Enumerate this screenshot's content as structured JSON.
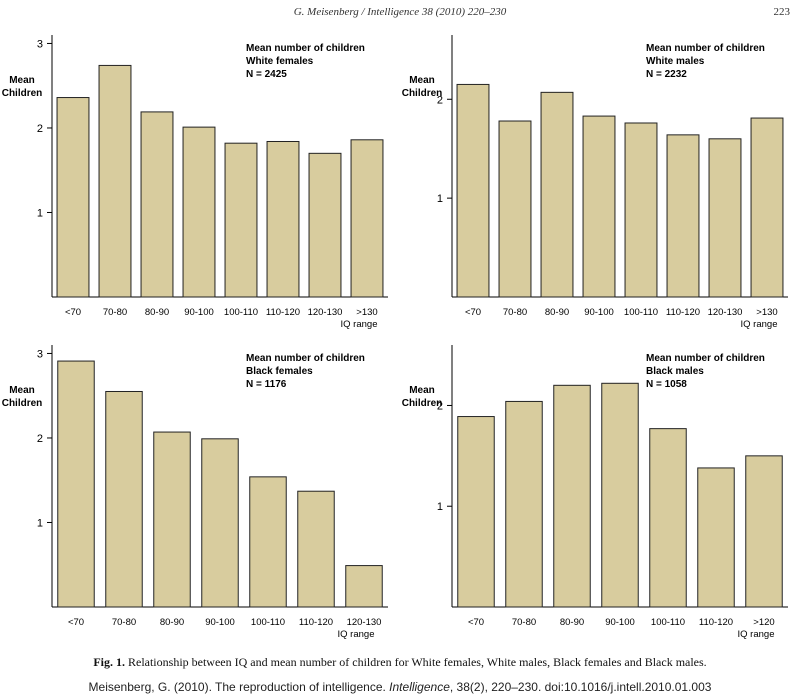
{
  "header": {
    "running_head": "G. Meisenberg / Intelligence 38 (2010) 220–230",
    "page_number": "223"
  },
  "chart_data": [
    {
      "type": "bar",
      "ylabel": "Mean\nChildren",
      "xlabel": "IQ range",
      "annotation": [
        "Mean number of children",
        "White females",
        "N = 2425"
      ],
      "categories": [
        "<70",
        "70-80",
        "80-90",
        "90-100",
        "100-110",
        "110-120",
        "120-130",
        ">130"
      ],
      "values": [
        2.36,
        2.74,
        2.19,
        2.01,
        1.82,
        1.84,
        1.7,
        1.86
      ],
      "ylim": [
        0,
        3.1
      ],
      "yticks": [
        1,
        2,
        3
      ],
      "bar_color": "#d8cc9e"
    },
    {
      "type": "bar",
      "ylabel": "Mean\nChildren",
      "xlabel": "IQ range",
      "annotation": [
        "Mean number of children",
        "White males",
        "N = 2232"
      ],
      "categories": [
        "<70",
        "70-80",
        "80-90",
        "90-100",
        "100-110",
        "110-120",
        "120-130",
        ">130"
      ],
      "values": [
        2.15,
        1.78,
        2.07,
        1.83,
        1.76,
        1.64,
        1.6,
        1.81
      ],
      "ylim": [
        0,
        2.65
      ],
      "yticks": [
        1,
        2
      ],
      "bar_color": "#d8cc9e"
    },
    {
      "type": "bar",
      "ylabel": "Mean\nChildren",
      "xlabel": "IQ range",
      "annotation": [
        "Mean number of children",
        "Black females",
        "N = 1176"
      ],
      "categories": [
        "<70",
        "70-80",
        "80-90",
        "90-100",
        "100-110",
        "110-120",
        "120-130"
      ],
      "values": [
        2.91,
        2.55,
        2.07,
        1.99,
        1.54,
        1.37,
        0.49
      ],
      "ylim": [
        0,
        3.1
      ],
      "yticks": [
        1,
        2,
        3
      ],
      "bar_color": "#d8cc9e"
    },
    {
      "type": "bar",
      "ylabel": "Mean\nChildren",
      "xlabel": "IQ range",
      "annotation": [
        "Mean number of children",
        "Black males",
        "N = 1058"
      ],
      "categories": [
        "<70",
        "70-80",
        "80-90",
        "90-100",
        "100-110",
        "110-120",
        ">120"
      ],
      "values": [
        1.89,
        2.04,
        2.2,
        2.22,
        1.77,
        1.38,
        1.5
      ],
      "ylim": [
        0,
        2.6
      ],
      "yticks": [
        1,
        2
      ],
      "bar_color": "#d8cc9e"
    }
  ],
  "caption": {
    "label": "Fig. 1.",
    "text": " Relationship between IQ and mean number of children for White females, White males, Black females and Black males."
  },
  "citation": {
    "before": "Meisenberg, G. (2010). The reproduction of intelligence. ",
    "journal": "Intelligence",
    "after": ", 38(2), 220–230. doi:10.1016/j.intell.2010.01.003"
  }
}
